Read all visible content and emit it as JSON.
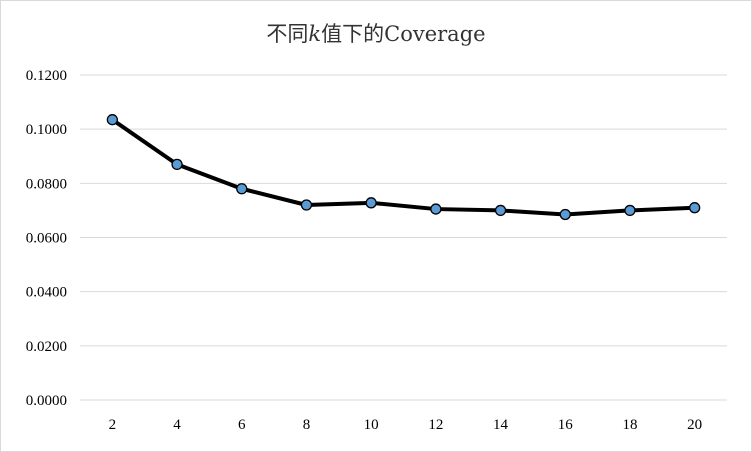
{
  "chart_data": {
    "type": "line",
    "title": {
      "prefix": "不同",
      "k": "k",
      "suffix": "值下的Coverage"
    },
    "xlabel": "",
    "ylabel": "",
    "categories": [
      "2",
      "4",
      "6",
      "8",
      "10",
      "12",
      "14",
      "16",
      "18",
      "20"
    ],
    "series": [
      {
        "values": [
          0.1035,
          0.087,
          0.078,
          0.072,
          0.0728,
          0.0705,
          0.07,
          0.0685,
          0.07,
          0.071
        ]
      }
    ],
    "ylim": [
      0,
      0.12
    ],
    "yticks": [
      "0.0000",
      "0.0200",
      "0.0400",
      "0.0600",
      "0.0800",
      "0.1000",
      "0.1200"
    ],
    "grid": true,
    "legend": "none",
    "colors": {
      "line": "#000000",
      "marker_fill": "#5b9bd5",
      "marker_stroke": "#000000",
      "grid": "#d9d9d9"
    }
  }
}
